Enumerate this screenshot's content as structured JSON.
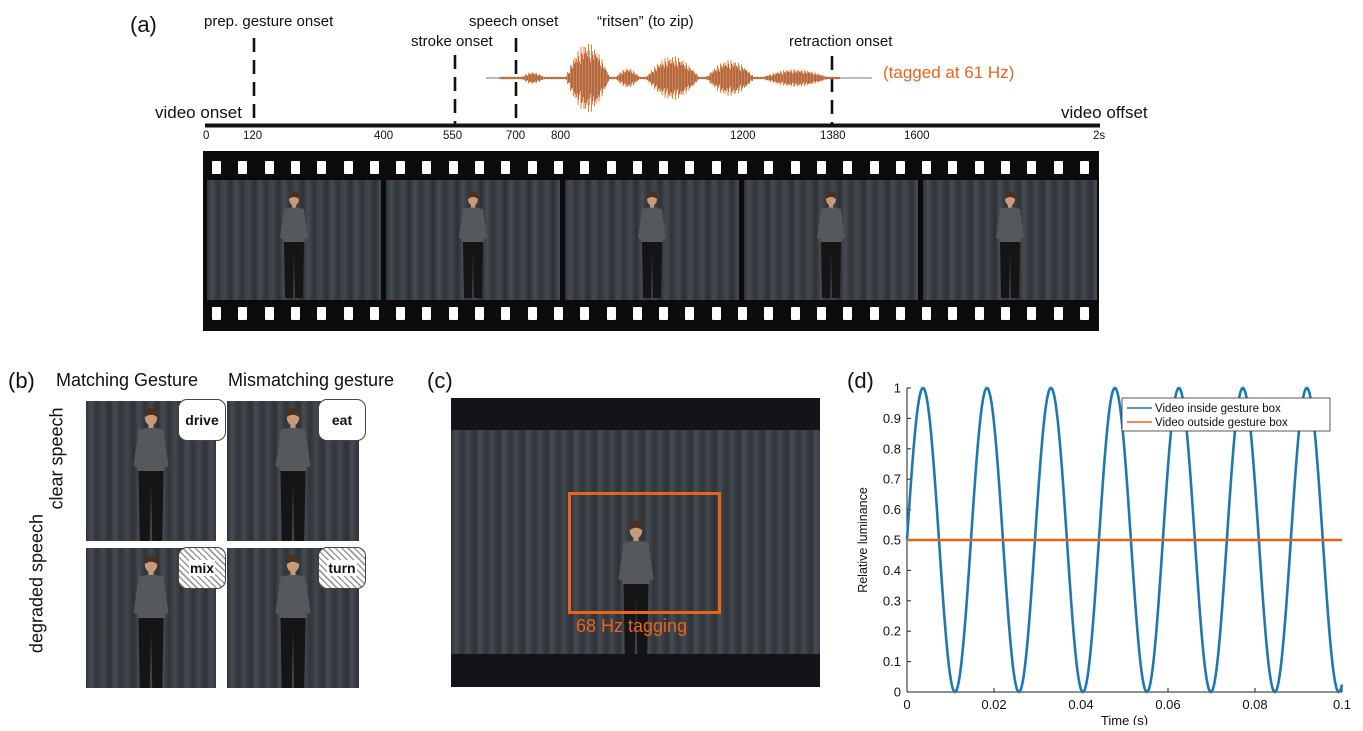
{
  "panel_a": {
    "letter": "(a)",
    "event_labels": {
      "prep": "prep. gesture onset",
      "stroke": "stroke onset",
      "speech": "speech onset",
      "word": "“ritsen” (to zip)",
      "retraction": "retraction onset"
    },
    "tag_label": "(tagged at 61 Hz)",
    "video_onset": "video onset",
    "video_offset": "video offset",
    "ticks": [
      "0",
      "120",
      "400",
      "550",
      "700",
      "800",
      "1200",
      "1380",
      "1600",
      "2s"
    ],
    "frames": 5
  },
  "panel_b": {
    "letter": "(b)",
    "col1": "Matching Gesture",
    "col2": "Mismatching gesture",
    "row1": "clear speech",
    "row2": "degraded speech",
    "words": [
      "drive",
      "eat",
      "mix",
      "turn"
    ]
  },
  "panel_c": {
    "letter": "(c)",
    "tag_label": "68 Hz tagging"
  },
  "panel_d": {
    "letter": "(d)",
    "colors": {
      "inside": "#1f77b4",
      "outside": "#e8641b"
    },
    "chart_data": {
      "type": "line",
      "xlabel": "Time (s)",
      "ylabel": "Relative luminance",
      "xlim": [
        0,
        0.1
      ],
      "ylim": [
        0,
        1
      ],
      "xticks": [
        "0",
        "0.02",
        "0.04",
        "0.06",
        "0.08",
        "0.1"
      ],
      "yticks": [
        "0",
        "0.1",
        "0.2",
        "0.3",
        "0.4",
        "0.5",
        "0.6",
        "0.7",
        "0.8",
        "0.9",
        "1"
      ],
      "legend_position": "top-right",
      "series": [
        {
          "name": "Video inside gesture box",
          "function": "0.5 + 0.5*sin(2*pi*68*t)",
          "frequency_hz": 68
        },
        {
          "name": "Video outside gesture box",
          "constant": 0.5
        }
      ]
    }
  }
}
